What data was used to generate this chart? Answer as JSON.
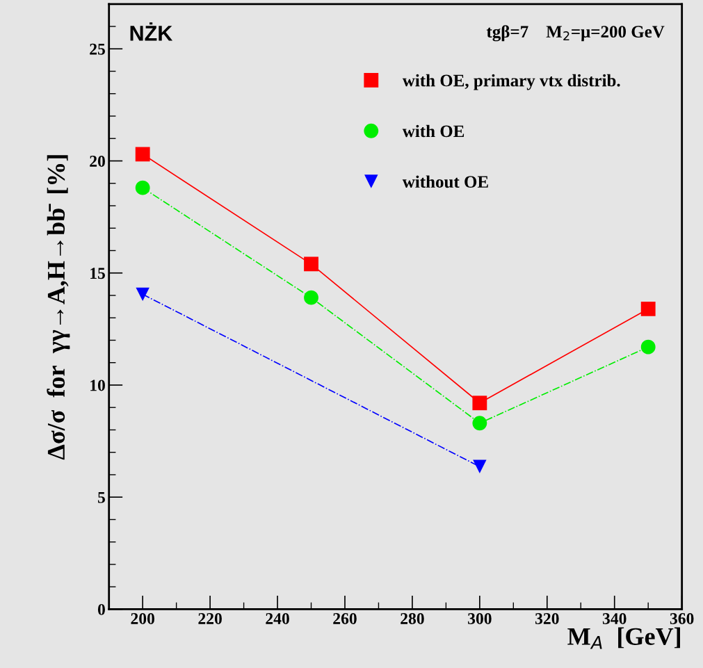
{
  "chart_data": {
    "type": "line",
    "xlabel": "M$_{A}$  [GeV]",
    "ylabel": "Δσ/σ  for  γγ→A,H→bb̄  [%]",
    "annotations": [
      "NŻK",
      "tgβ=7    M$_{2}$=μ=200 GeV"
    ],
    "xlim": [
      190,
      360
    ],
    "xticks": [
      200,
      220,
      240,
      260,
      280,
      300,
      320,
      340,
      360
    ],
    "ylim": [
      0,
      27
    ],
    "yticks": [
      0,
      5,
      10,
      15,
      20,
      25
    ],
    "grid": false,
    "legend": "top right",
    "series": [
      {
        "name": "with OE, primary vtx distrib.",
        "color": "#ff0000",
        "marker": "square",
        "line_style": "solid",
        "x": [
          200,
          250,
          300,
          350
        ],
        "values": [
          20.3,
          15.4,
          9.2,
          13.4
        ]
      },
      {
        "name": "with OE",
        "color": "#00ee00",
        "marker": "circle",
        "line_style": "dashdot",
        "x": [
          200,
          250,
          300,
          350
        ],
        "values": [
          18.8,
          13.9,
          8.3,
          11.7
        ]
      },
      {
        "name": "without OE",
        "color": "#0000ff",
        "marker": "triangle",
        "line_style": "dashdot",
        "x": [
          200,
          300
        ],
        "values": [
          14.05,
          6.36
        ]
      }
    ]
  }
}
